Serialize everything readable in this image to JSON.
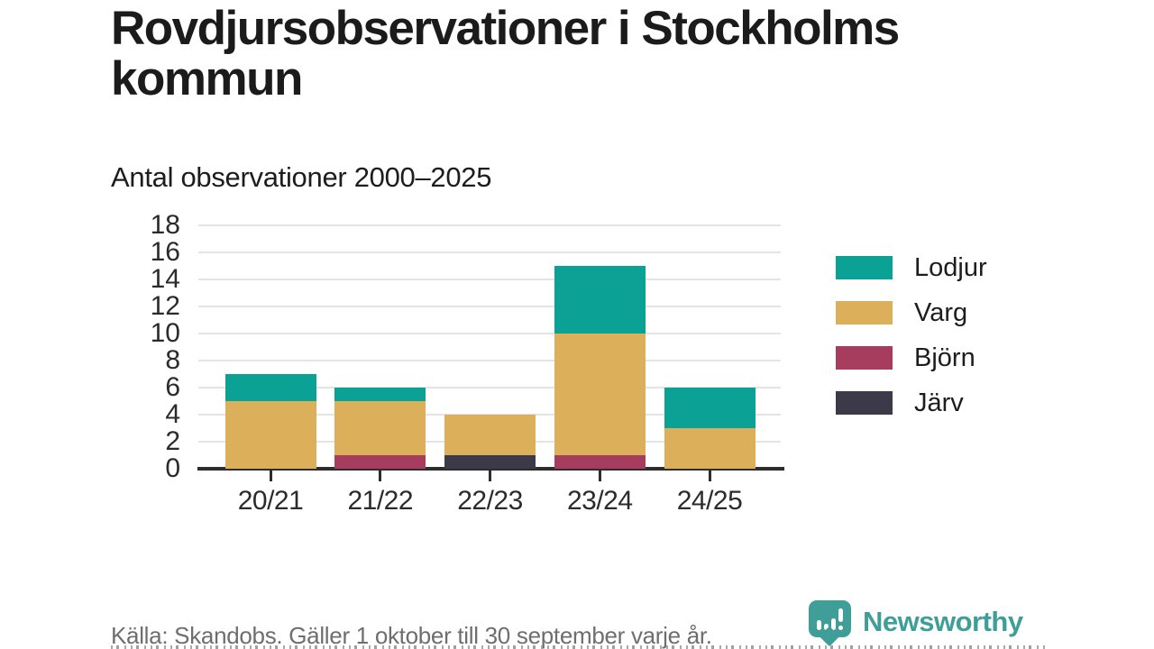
{
  "chart_data": {
    "type": "bar",
    "stacked": true,
    "title": "Rovdjursobservationer i Stockholms kommun",
    "subtitle": "Antal observationer 2000–2025",
    "categories": [
      "20/21",
      "21/22",
      "22/23",
      "23/24",
      "24/25"
    ],
    "series": [
      {
        "name": "Lodjur",
        "color": "#0ba295",
        "values": [
          2,
          1,
          0,
          5,
          3
        ]
      },
      {
        "name": "Varg",
        "color": "#dcb05a",
        "values": [
          5,
          4,
          3,
          9,
          3
        ]
      },
      {
        "name": "Björn",
        "color": "#a63c5e",
        "values": [
          0,
          1,
          0,
          1,
          0
        ]
      },
      {
        "name": "Järv",
        "color": "#3c3a49",
        "values": [
          0,
          0,
          1,
          0,
          0
        ]
      }
    ],
    "stack_order_bottom_to_top": [
      "Järv",
      "Björn",
      "Varg",
      "Lodjur"
    ],
    "stack_totals": [
      7,
      6,
      4,
      15,
      6
    ],
    "ylim": [
      0,
      18
    ],
    "yticks": [
      0,
      2,
      4,
      6,
      8,
      10,
      12,
      14,
      16,
      18
    ],
    "xlabel": "",
    "ylabel": "",
    "grid": "horizontal",
    "legend_position": "right"
  },
  "footer": {
    "source": "Källa: Skandobs. Gäller 1 oktober till 30 september varje år.",
    "brand": "Newsworthy",
    "brand_color": "#3f9e98"
  }
}
